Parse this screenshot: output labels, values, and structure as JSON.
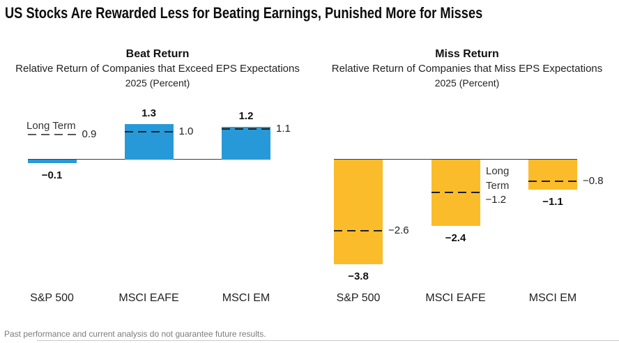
{
  "page": {
    "title": "US Stocks Are Rewarded Less for Beating Earnings, Punished More for Misses",
    "disclaimer": "Past performance and current analysis do not guarantee future results."
  },
  "chart_data": [
    {
      "type": "bar",
      "title": "Beat Return",
      "subtitle": "Relative Return of Companies that Exceed EPS Expectations",
      "period_label": "2025 (Percent)",
      "categories": [
        "S&P 500",
        "MSCI EAFE",
        "MSCI EM"
      ],
      "series": [
        {
          "name": "2025",
          "style": "bar",
          "color": "#2899D8",
          "values": [
            -0.1,
            1.3,
            1.2
          ],
          "labels": [
            "−0.1",
            "1.3",
            "1.2"
          ]
        },
        {
          "name": "Long Term",
          "style": "dashed-line",
          "values": [
            0.9,
            1.0,
            1.1
          ],
          "labels": [
            "0.9",
            "1.0",
            "1.1"
          ]
        }
      ],
      "legend_label": "Long Term",
      "baseline": 0,
      "ylim": [
        -4.2,
        1.6
      ],
      "grid": false,
      "xlabel": "",
      "ylabel": ""
    },
    {
      "type": "bar",
      "title": "Miss Return",
      "subtitle": "Relative Return of Companies that Miss EPS Expectations",
      "period_label": "2025 (Percent)",
      "categories": [
        "S&P 500",
        "MSCI EAFE",
        "MSCI EM"
      ],
      "series": [
        {
          "name": "2025",
          "style": "bar",
          "color": "#FBBC2B",
          "values": [
            -3.8,
            -2.4,
            -1.1
          ],
          "labels": [
            "−3.8",
            "−2.4",
            "−1.1"
          ]
        },
        {
          "name": "Long Term",
          "style": "dashed-line",
          "values": [
            -2.6,
            -1.2,
            -0.8
          ],
          "labels": [
            "−2.6",
            "−1.2",
            "−0.8"
          ]
        }
      ],
      "legend_label": "Long Term",
      "baseline": 0,
      "ylim": [
        -4.2,
        1.6
      ],
      "grid": false,
      "xlabel": "",
      "ylabel": ""
    }
  ]
}
